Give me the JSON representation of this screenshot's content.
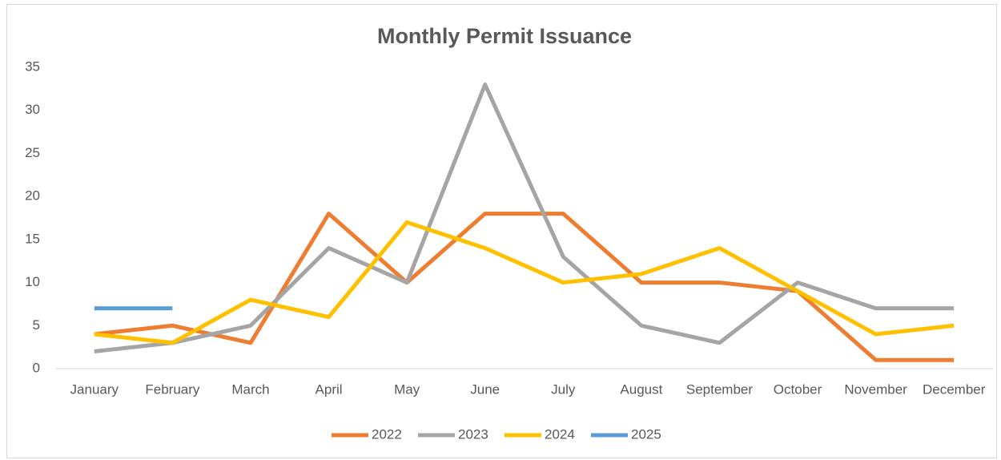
{
  "chart_data": {
    "type": "line",
    "title": "Monthly Permit Issuance",
    "categories": [
      "January",
      "February",
      "March",
      "April",
      "May",
      "June",
      "July",
      "August",
      "September",
      "October",
      "November",
      "December"
    ],
    "series": [
      {
        "name": "2022",
        "color": "#ED7D31",
        "values": [
          4,
          5,
          3,
          18,
          10,
          18,
          18,
          10,
          10,
          9,
          1,
          1
        ]
      },
      {
        "name": "2023",
        "color": "#A5A5A5",
        "values": [
          2,
          3,
          5,
          14,
          10,
          33,
          13,
          5,
          3,
          10,
          7,
          7
        ]
      },
      {
        "name": "2024",
        "color": "#FFC000",
        "values": [
          4,
          3,
          8,
          6,
          17,
          14,
          10,
          11,
          14,
          9,
          4,
          5
        ]
      },
      {
        "name": "2025",
        "color": "#5B9BD5",
        "values": [
          7,
          7,
          null,
          null,
          null,
          null,
          null,
          null,
          null,
          null,
          null,
          null
        ]
      }
    ],
    "ylim": [
      0,
      35
    ],
    "yticks": [
      0,
      5,
      10,
      15,
      20,
      25,
      30,
      35
    ],
    "grid": false,
    "legend": "bottom"
  }
}
